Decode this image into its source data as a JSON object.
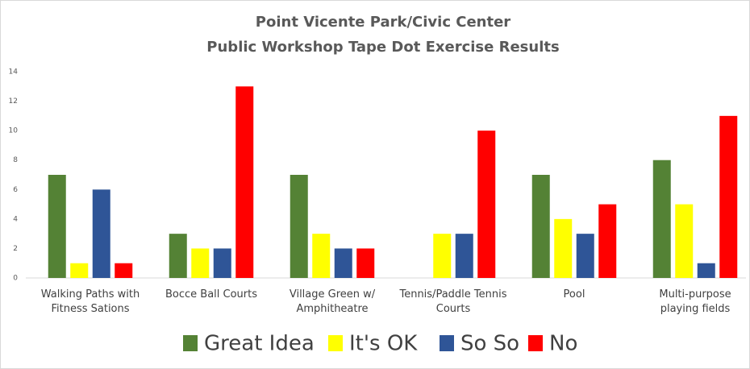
{
  "chart_data": {
    "type": "bar",
    "title": "Point Vicente Park/Civic Center",
    "subtitle": "Public Workshop Tape Dot Exercise Results",
    "categories": [
      "Walking Paths with Fitness Sations",
      "Bocce Ball Courts",
      "Village Green w/ Amphitheatre",
      "Tennis/Paddle Tennis Courts",
      "Pool",
      "Multi-purpose playing fields"
    ],
    "series": [
      {
        "name": "Great Idea",
        "color": "#548235",
        "values": [
          7,
          3,
          7,
          0,
          7,
          8
        ]
      },
      {
        "name": "It's OK",
        "color": "#ffff00",
        "values": [
          1,
          2,
          3,
          3,
          4,
          5
        ]
      },
      {
        "name": "So So",
        "color": "#2f5597",
        "values": [
          6,
          2,
          2,
          3,
          3,
          1
        ]
      },
      {
        "name": "No",
        "color": "#ff0000",
        "values": [
          1,
          13,
          2,
          10,
          5,
          11
        ]
      }
    ],
    "ylim": [
      0,
      14
    ],
    "yticks": [
      0,
      2,
      4,
      6,
      8,
      10,
      12,
      14
    ],
    "grid": false,
    "legend": "bottom"
  }
}
